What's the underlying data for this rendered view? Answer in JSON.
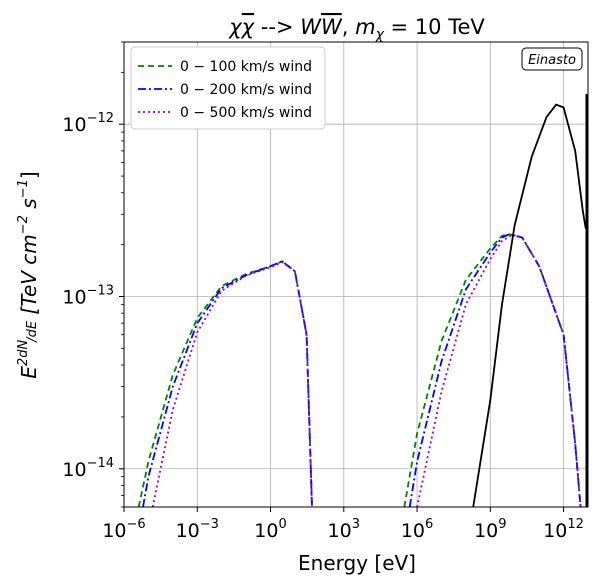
{
  "chart_data": {
    "type": "line",
    "title": {
      "prefix": "χ",
      "chi2": "χ",
      "middle": " --> ",
      "W1": "W",
      "W2": "W",
      "comma": ", ",
      "m": "m",
      "m_sub": "χ",
      "suffix": " = 10 TeV"
    },
    "xlabel": "Energy [eV]",
    "ylabel": {
      "E": "E",
      "exp_num": "2dN",
      "exp_den": "dE",
      "unit_open": " [TeV cm",
      "unit_exp1": "−2",
      "unit_mid": " s",
      "unit_exp2": "−1",
      "unit_close": "]"
    },
    "xscale": "log",
    "yscale": "log",
    "xlim": [
      1e-06,
      10000000000000.0
    ],
    "ylim": [
      6e-15,
      3e-12
    ],
    "grid": true,
    "legend_position": "top-left",
    "annotation": "Einasto",
    "x_ticks": [
      {
        "value": 1e-06,
        "base": "10",
        "exp": "−6"
      },
      {
        "value": 0.001,
        "base": "10",
        "exp": "−3"
      },
      {
        "value": 1,
        "base": "10",
        "exp": "0"
      },
      {
        "value": 1000.0,
        "base": "10",
        "exp": "3"
      },
      {
        "value": 1000000.0,
        "base": "10",
        "exp": "6"
      },
      {
        "value": 1000000000.0,
        "base": "10",
        "exp": "9"
      },
      {
        "value": 1000000000000.0,
        "base": "10",
        "exp": "12"
      }
    ],
    "y_ticks": [
      {
        "value": 1e-14,
        "base": "10",
        "exp": "−14"
      },
      {
        "value": 1e-13,
        "base": "10",
        "exp": "−13"
      },
      {
        "value": 1e-12,
        "base": "10",
        "exp": "−12"
      }
    ],
    "series": [
      {
        "name_math": "0 − 100",
        "name_rest": " km/s wind",
        "color": "#008000",
        "dash": "6,4",
        "points": [
          [
            4e-06,
            6e-15
          ],
          [
            1e-05,
            1.1e-14
          ],
          [
            0.0001,
            3.5e-14
          ],
          [
            0.001,
            7.5e-14
          ],
          [
            0.01,
            1.15e-13
          ],
          [
            0.1,
            1.35e-13
          ],
          [
            1,
            1.5e-13
          ],
          [
            3,
            1.6e-13
          ],
          [
            10,
            1.4e-13
          ],
          [
            30,
            6e-14
          ],
          [
            50,
            6e-15
          ]
        ],
        "points2": [
          [
            300000.0,
            6e-15
          ],
          [
            1000000.0,
            1.6e-14
          ],
          [
            10000000.0,
            5.5e-14
          ],
          [
            100000000.0,
            1.25e-13
          ],
          [
            1000000000.0,
            1.9e-13
          ],
          [
            3000000000.0,
            2.25e-13
          ],
          [
            6000000000.0,
            2.3e-13
          ],
          [
            20000000000.0,
            2.2e-13
          ],
          [
            100000000000.0,
            1.5e-13
          ],
          [
            1000000000000.0,
            6e-14
          ],
          [
            3000000000000.0,
            1.4e-14
          ],
          [
            5000000000000.0,
            6e-15
          ]
        ]
      },
      {
        "name_math": "0 − 200",
        "name_rest": " km/s wind",
        "color": "#0000ff",
        "dash": "8,3,2,3",
        "points": [
          [
            6e-06,
            6e-15
          ],
          [
            1e-05,
            9e-15
          ],
          [
            0.0001,
            3e-14
          ],
          [
            0.001,
            7e-14
          ],
          [
            0.01,
            1.12e-13
          ],
          [
            0.1,
            1.33e-13
          ],
          [
            1,
            1.5e-13
          ],
          [
            3,
            1.6e-13
          ],
          [
            10,
            1.4e-13
          ],
          [
            30,
            6e-14
          ],
          [
            50,
            6e-15
          ]
        ],
        "points2": [
          [
            500000.0,
            6e-15
          ],
          [
            1000000.0,
            1.1e-14
          ],
          [
            10000000.0,
            4.2e-14
          ],
          [
            100000000.0,
            1.1e-13
          ],
          [
            1000000000.0,
            1.8e-13
          ],
          [
            3000000000.0,
            2.2e-13
          ],
          [
            6000000000.0,
            2.3e-13
          ],
          [
            20000000000.0,
            2.2e-13
          ],
          [
            100000000000.0,
            1.5e-13
          ],
          [
            1000000000000.0,
            6e-14
          ],
          [
            3000000000000.0,
            1.4e-14
          ],
          [
            5000000000000.0,
            6e-15
          ]
        ]
      },
      {
        "name_math": "0 − 500",
        "name_rest": " km/s wind",
        "color": "#9400d3",
        "dash": "2,3",
        "points": [
          [
            1.5e-05,
            6e-15
          ],
          [
            0.0001,
            2.2e-14
          ],
          [
            0.001,
            6.2e-14
          ],
          [
            0.01,
            1.08e-13
          ],
          [
            0.1,
            1.32e-13
          ],
          [
            1,
            1.48e-13
          ],
          [
            3,
            1.58e-13
          ],
          [
            10,
            1.4e-13
          ],
          [
            30,
            6e-14
          ],
          [
            50,
            6e-15
          ]
        ],
        "points2": [
          [
            1000000.0,
            6e-15
          ],
          [
            10000000.0,
            2.8e-14
          ],
          [
            100000000.0,
            9e-14
          ],
          [
            1000000000.0,
            1.65e-13
          ],
          [
            3000000000.0,
            2.1e-13
          ],
          [
            8000000000.0,
            2.28e-13
          ],
          [
            20000000000.0,
            2.2e-13
          ],
          [
            100000000000.0,
            1.5e-13
          ],
          [
            1000000000000.0,
            6e-14
          ],
          [
            3000000000000.0,
            1.4e-14
          ],
          [
            5000000000000.0,
            6e-15
          ]
        ]
      },
      {
        "name_math": "",
        "name_rest": "",
        "color": "#000000",
        "dash": "",
        "points": [
          [
            200000000.0,
            6e-15
          ],
          [
            1000000000.0,
            2.5e-14
          ],
          [
            3000000000.0,
            9e-14
          ],
          [
            10000000000.0,
            2.6e-13
          ],
          [
            50000000000.0,
            6.5e-13
          ],
          [
            200000000000.0,
            1.1e-12
          ],
          [
            500000000000.0,
            1.3e-12
          ],
          [
            1000000000000.0,
            1.25e-12
          ],
          [
            3000000000000.0,
            7e-13
          ],
          [
            6000000000000.0,
            3.2e-13
          ],
          [
            8000000000000.0,
            2.5e-13
          ],
          [
            11000000000000.0,
            2.6e-13
          ],
          [
            14000000000000.0,
            1.2e-12
          ],
          [
            15000000000000.0,
            1.5e-12
          ]
        ],
        "points2": []
      }
    ]
  }
}
